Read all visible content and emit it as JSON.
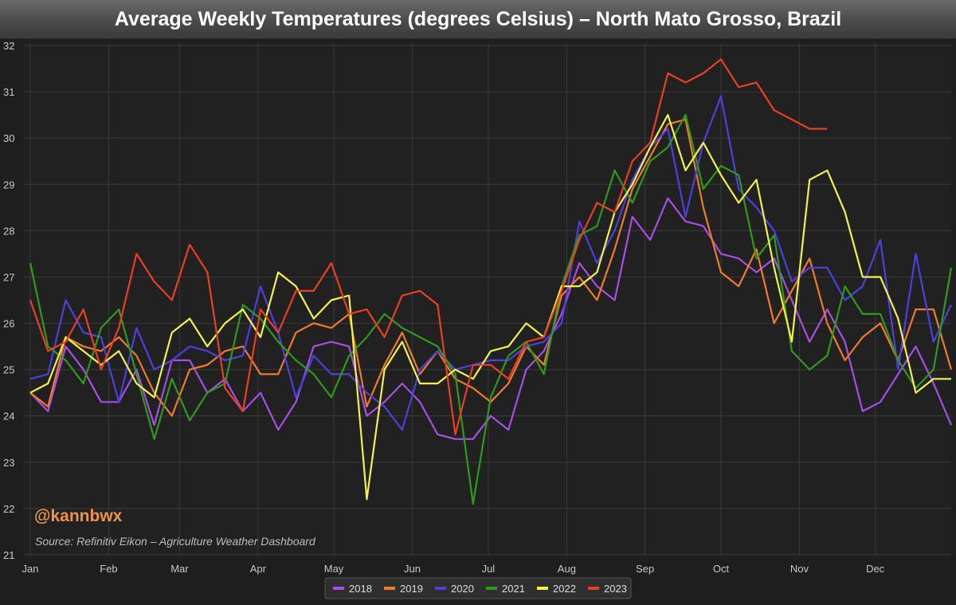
{
  "chart_data": {
    "type": "line",
    "title": "Average Weekly Temperatures (degrees Celsius) – North Mato Grosso, Brazil",
    "xlabel": "",
    "ylabel": "",
    "ylim": [
      21,
      32
    ],
    "xlim": [
      0,
      52
    ],
    "y_ticks": [
      21,
      22,
      23,
      24,
      25,
      26,
      27,
      28,
      29,
      30,
      31,
      32
    ],
    "x_ticks": [
      {
        "label": "Jan",
        "week": 0
      },
      {
        "label": "Feb",
        "week": 4.43
      },
      {
        "label": "Mar",
        "week": 8.43
      },
      {
        "label": "Apr",
        "week": 12.86
      },
      {
        "label": "May",
        "week": 17.14
      },
      {
        "label": "Jun",
        "week": 21.57
      },
      {
        "label": "Jul",
        "week": 25.86
      },
      {
        "label": "Aug",
        "week": 30.29
      },
      {
        "label": "Sep",
        "week": 34.71
      },
      {
        "label": "Oct",
        "week": 39
      },
      {
        "label": "Nov",
        "week": 43.43
      },
      {
        "label": "Dec",
        "week": 47.71
      }
    ],
    "grid": true,
    "legend_position": "bottom-center",
    "series": [
      {
        "name": "2018",
        "color": "#a64ee6",
        "values": [
          24.5,
          24.1,
          25.5,
          25.0,
          24.3,
          24.3,
          25.0,
          23.8,
          25.2,
          25.2,
          24.5,
          24.8,
          24.1,
          24.5,
          23.7,
          24.3,
          25.5,
          25.6,
          25.5,
          24.0,
          24.3,
          24.7,
          24.3,
          23.6,
          23.5,
          23.5,
          24.0,
          23.7,
          25.0,
          25.4,
          26.2,
          27.3,
          26.8,
          26.5,
          28.3,
          27.8,
          28.7,
          28.2,
          28.1,
          27.5,
          27.4,
          27.1,
          27.4,
          26.5,
          25.6,
          26.3,
          25.6,
          24.1,
          24.3,
          24.9,
          25.5,
          24.7,
          23.8
        ]
      },
      {
        "name": "2019",
        "color": "#f07b2a",
        "values": [
          24.5,
          24.2,
          25.7,
          25.5,
          25.4,
          25.7,
          25.3,
          24.5,
          24.0,
          25.0,
          25.1,
          25.4,
          25.5,
          24.9,
          24.9,
          25.8,
          26.0,
          25.9,
          26.2,
          24.2,
          25.1,
          25.8,
          24.9,
          25.4,
          24.8,
          24.6,
          24.3,
          24.7,
          25.5,
          25.1,
          26.6,
          27.0,
          26.5,
          27.6,
          28.9,
          29.6,
          30.3,
          30.4,
          28.5,
          27.1,
          26.8,
          27.6,
          26.0,
          26.7,
          27.4,
          26.0,
          25.2,
          25.7,
          26.0,
          25.2,
          26.3,
          26.3,
          25.0
        ]
      },
      {
        "name": "2020",
        "color": "#4e3fe0",
        "values": [
          24.8,
          24.9,
          26.5,
          25.8,
          25.7,
          24.3,
          25.9,
          25.0,
          25.2,
          25.5,
          25.4,
          25.2,
          25.3,
          26.8,
          25.8,
          24.4,
          25.3,
          24.9,
          24.9,
          24.5,
          24.2,
          23.7,
          25.0,
          25.4,
          25.0,
          25.1,
          25.2,
          25.2,
          25.5,
          25.6,
          26.0,
          28.2,
          27.3,
          28.0,
          29.1,
          29.8,
          30.2,
          28.3,
          29.9,
          30.9,
          28.9,
          28.5,
          28.0,
          26.9,
          27.2,
          27.2,
          26.5,
          26.8,
          27.8,
          25.0,
          27.5,
          25.6,
          26.4
        ]
      },
      {
        "name": "2021",
        "color": "#2f9a1c",
        "values": [
          27.3,
          25.5,
          25.2,
          24.7,
          25.9,
          26.3,
          24.9,
          23.5,
          24.8,
          23.9,
          24.5,
          24.7,
          26.4,
          26.1,
          25.6,
          25.2,
          24.9,
          24.4,
          25.3,
          25.7,
          26.2,
          25.9,
          25.7,
          25.5,
          24.9,
          22.1,
          24.4,
          25.3,
          25.6,
          24.9,
          26.8,
          27.9,
          28.1,
          29.3,
          28.6,
          29.5,
          29.8,
          30.5,
          28.9,
          29.4,
          29.2,
          27.4,
          27.9,
          25.4,
          25.0,
          25.3,
          26.8,
          26.2,
          26.2,
          25.2,
          24.6,
          25.0,
          27.2
        ]
      },
      {
        "name": "2022",
        "color": "#f2f24b",
        "values": [
          24.5,
          24.7,
          25.7,
          25.4,
          25.1,
          25.4,
          24.7,
          24.4,
          25.8,
          26.1,
          25.5,
          26.0,
          26.3,
          25.7,
          27.1,
          26.8,
          26.1,
          26.5,
          26.6,
          22.2,
          25.0,
          25.6,
          24.7,
          24.7,
          25.0,
          24.8,
          25.4,
          25.5,
          26.0,
          25.7,
          26.8,
          26.8,
          27.1,
          28.4,
          29.0,
          29.8,
          30.5,
          29.3,
          29.9,
          29.2,
          28.6,
          29.1,
          27.2,
          25.6,
          29.1,
          29.3,
          28.4,
          27.0,
          27.0,
          26.1,
          24.5,
          24.8,
          24.8
        ]
      },
      {
        "name": "2023",
        "color": "#e84020",
        "values": [
          26.5,
          25.4,
          25.6,
          26.3,
          25.0,
          25.9,
          27.5,
          26.9,
          26.5,
          27.7,
          27.1,
          24.6,
          24.1,
          26.3,
          25.8,
          26.7,
          26.7,
          27.3,
          26.2,
          26.3,
          25.7,
          26.6,
          26.7,
          26.4,
          23.6,
          25.1,
          25.1,
          24.8,
          25.6,
          25.7,
          26.7,
          27.8,
          28.6,
          28.4,
          29.5,
          29.9,
          31.4,
          31.2,
          31.4,
          31.7,
          31.1,
          31.2,
          30.6,
          30.4,
          30.2,
          30.2
        ]
      }
    ]
  },
  "watermark": "@kannbwx",
  "source": "Source: Refinitiv Eikon – Agriculture Weather Dashboard",
  "colors": {
    "background": "#1e1e1e",
    "plot_background": "#212121",
    "grid": "#3a3a3a",
    "axis_text": "#c8c8c8"
  }
}
